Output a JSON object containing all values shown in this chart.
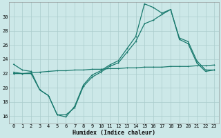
{
  "xlabel": "Humidex (Indice chaleur)",
  "background_color": "#cce8e8",
  "line_color": "#1a7a6e",
  "grid_color": "#aacccc",
  "xlim": [
    -0.5,
    23.5
  ],
  "ylim": [
    15,
    32
  ],
  "yticks": [
    16,
    18,
    20,
    22,
    24,
    26,
    28,
    30
  ],
  "xticks": [
    0,
    1,
    2,
    3,
    4,
    5,
    6,
    7,
    8,
    9,
    10,
    11,
    12,
    13,
    14,
    15,
    16,
    17,
    18,
    19,
    20,
    21,
    22,
    23
  ],
  "line1_x": [
    0,
    1,
    2,
    3,
    4,
    5,
    6,
    7,
    8,
    9,
    10,
    11,
    12,
    13,
    14,
    15,
    16,
    17,
    18,
    19,
    20,
    21,
    22,
    23
  ],
  "line1_y": [
    23.3,
    22.5,
    22.3,
    19.7,
    18.9,
    16.2,
    15.9,
    17.4,
    20.4,
    21.8,
    22.4,
    23.2,
    23.8,
    25.5,
    27.2,
    31.8,
    31.3,
    30.5,
    31.0,
    27.0,
    26.5,
    23.8,
    22.5,
    22.5
  ],
  "line2_x": [
    0,
    1,
    2,
    3,
    4,
    5,
    6,
    7,
    8,
    9,
    10,
    11,
    12,
    13,
    14,
    15,
    16,
    17,
    18,
    19,
    20,
    21,
    22,
    23
  ],
  "line2_y": [
    22.2,
    22.0,
    22.0,
    19.7,
    18.9,
    16.2,
    16.2,
    17.2,
    20.2,
    21.5,
    22.2,
    23.0,
    23.5,
    25.0,
    26.5,
    29.0,
    29.5,
    30.3,
    31.0,
    26.8,
    26.2,
    23.5,
    22.3,
    22.5
  ],
  "line3_x": [
    0,
    1,
    2,
    3,
    4,
    5,
    6,
    7,
    8,
    9,
    10,
    11,
    12,
    13,
    14,
    15,
    16,
    17,
    18,
    19,
    20,
    21,
    22,
    23
  ],
  "line3_y": [
    22.0,
    22.0,
    22.1,
    22.2,
    22.3,
    22.4,
    22.4,
    22.5,
    22.5,
    22.6,
    22.6,
    22.7,
    22.7,
    22.8,
    22.8,
    22.9,
    22.9,
    22.9,
    23.0,
    23.0,
    23.0,
    23.1,
    23.1,
    23.2
  ]
}
